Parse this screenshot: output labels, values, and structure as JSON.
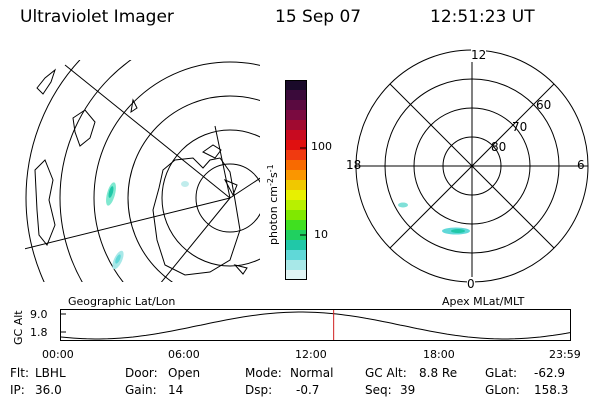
{
  "header": {
    "title": "Ultraviolet Imager",
    "date": "15 Sep 07",
    "time": "12:51:23 UT"
  },
  "left_map": {
    "label": "Geographic Lat/Lon"
  },
  "right_map": {
    "label": "Apex MLat/MLT",
    "mlt_labels": [
      "12",
      "18",
      "6",
      "0"
    ],
    "lat_labels": [
      "60",
      "70",
      "80"
    ]
  },
  "colorbar": {
    "unit_label": "photon cm",
    "unit_sup1": "-2",
    "unit_mid": "s",
    "unit_sup2": "-1",
    "ticks": [
      "100",
      "10"
    ],
    "colors": [
      "#1a0a2a",
      "#3a0a3a",
      "#5a0a40",
      "#7a0a40",
      "#a00a30",
      "#c80a20",
      "#e01010",
      "#f03a10",
      "#f86a00",
      "#fa9600",
      "#f0c800",
      "#e8f000",
      "#b8f000",
      "#80e800",
      "#40e020",
      "#20d060",
      "#20c8a8",
      "#60d8d8",
      "#a8e8e8",
      "#e0f4f4"
    ]
  },
  "altitude_plot": {
    "ylabel": "GC Alt",
    "yticks": [
      "9.0",
      "1.8"
    ],
    "xticks": [
      "00:00",
      "06:00",
      "12:00",
      "18:00",
      "23:59"
    ],
    "marker_time_hours": 12.856
  },
  "info": {
    "flt_label": "Flt:",
    "flt_value": "LBHL",
    "ip_label": "IP:",
    "ip_value": "36.0",
    "door_label": "Door:",
    "door_value": "Open",
    "gain_label": "Gain:",
    "gain_value": "14",
    "mode_label": "Mode:",
    "mode_value": "Normal",
    "dsp_label": "Dsp:",
    "dsp_value": "-0.7",
    "gcalt_label": "GC Alt:",
    "gcalt_value": "8.8 Re",
    "seq_label": "Seq:",
    "seq_value": "39",
    "glat_label": "GLat:",
    "glat_value": "-62.9",
    "glon_label": "GLon:",
    "glon_value": "158.3"
  }
}
